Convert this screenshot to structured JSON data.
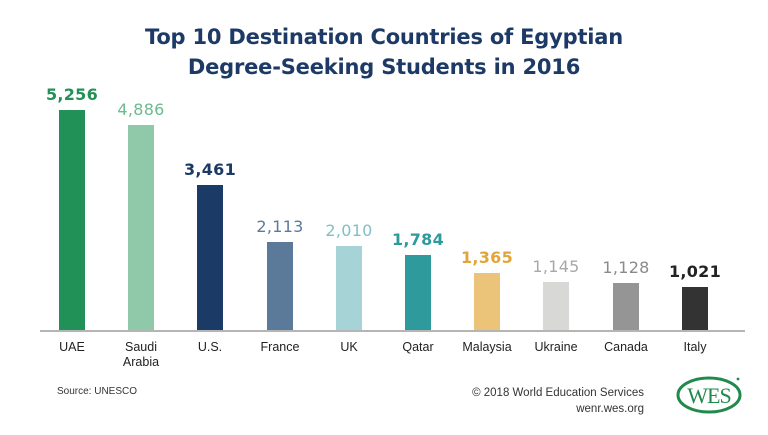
{
  "title_lines": [
    "Top 10 Destination Countries of Egyptian",
    "Degree-Seeking Students in 2016"
  ],
  "chart_data": {
    "type": "bar",
    "title": "Top 10 Destination Countries of Egyptian Degree-Seeking Students in 2016",
    "xlabel": "",
    "ylabel": "",
    "categories": [
      "UAE",
      "Saudi Arabia",
      "U.S.",
      "France",
      "UK",
      "Qatar",
      "Malaysia",
      "Ukraine",
      "Canada",
      "Italy"
    ],
    "values": [
      5256,
      4886,
      3461,
      2113,
      2010,
      1784,
      1365,
      1145,
      1128,
      1021
    ],
    "labels": [
      "5,256",
      "4,886",
      "3,461",
      "2,113",
      "2,010",
      "1,784",
      "1,365",
      "1,145",
      "1,128",
      "1,021"
    ],
    "colors": [
      "#229157",
      "#8fc9aa",
      "#1b3a65",
      "#5b7a9a",
      "#a6d3d6",
      "#2f9a9c",
      "#ebc47a",
      "#d8d8d6",
      "#959595",
      "#333333"
    ],
    "label_colors": [
      "#229157",
      "#6dbb8e",
      "#1b3a65",
      "#5b7a9a",
      "#7fc0c4",
      "#2f9a9c",
      "#e3a53a",
      "#a8a8a8",
      "#8a8a8a",
      "#222222"
    ],
    "grid": false,
    "legend": "none",
    "ylim": [
      0,
      5256
    ]
  },
  "categories_display": [
    [
      "UAE"
    ],
    [
      "Saudi",
      "Arabia"
    ],
    [
      "U.S."
    ],
    [
      "France"
    ],
    [
      "UK"
    ],
    [
      "Qatar"
    ],
    [
      "Malaysia"
    ],
    [
      "Ukraine"
    ],
    [
      "Canada"
    ],
    [
      "Italy"
    ]
  ],
  "footer": {
    "source": "Source: UNESCO",
    "copyright": "© 2018 World Education Services",
    "url": "wenr.wes.org",
    "logo_text": "WES",
    "logo_color": "#1f8a4c"
  }
}
